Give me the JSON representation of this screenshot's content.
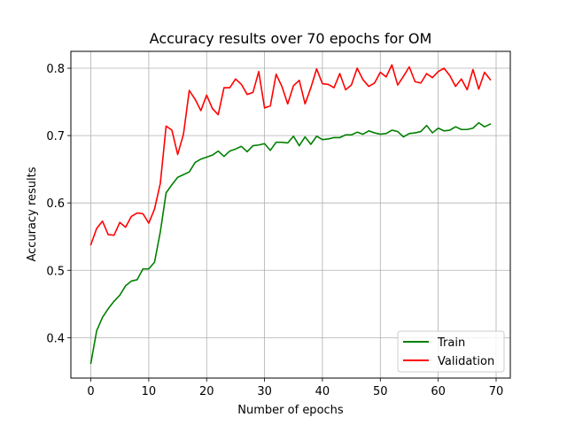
{
  "chart_data": {
    "type": "line",
    "title": "Accuracy results over 70 epochs for OM",
    "xlabel": "Number of epochs",
    "ylabel": "Accuracy results",
    "xlim": [
      -3.45,
      72.45
    ],
    "ylim": [
      0.34,
      0.825
    ],
    "xticks": [
      0,
      10,
      20,
      30,
      40,
      50,
      60,
      70
    ],
    "yticks": [
      0.4,
      0.5,
      0.6,
      0.7,
      0.8
    ],
    "ytick_labels": [
      "0.4",
      "0.5",
      "0.6",
      "0.7",
      "0.8"
    ],
    "grid": true,
    "legend_position": "lower-right",
    "x": [
      0,
      1,
      2,
      3,
      4,
      5,
      6,
      7,
      8,
      9,
      10,
      11,
      12,
      13,
      14,
      15,
      16,
      17,
      18,
      19,
      20,
      21,
      22,
      23,
      24,
      25,
      26,
      27,
      28,
      29,
      30,
      31,
      32,
      33,
      34,
      35,
      36,
      37,
      38,
      39,
      40,
      41,
      42,
      43,
      44,
      45,
      46,
      47,
      48,
      49,
      50,
      51,
      52,
      53,
      54,
      55,
      56,
      57,
      58,
      59,
      60,
      61,
      62,
      63,
      64,
      65,
      66,
      67,
      68,
      69
    ],
    "series": [
      {
        "name": "Train",
        "color": "#008000",
        "values": [
          0.362,
          0.41,
          0.43,
          0.443,
          0.454,
          0.463,
          0.477,
          0.484,
          0.486,
          0.502,
          0.502,
          0.512,
          0.557,
          0.615,
          0.627,
          0.638,
          0.642,
          0.646,
          0.66,
          0.665,
          0.668,
          0.671,
          0.677,
          0.669,
          0.677,
          0.68,
          0.684,
          0.676,
          0.685,
          0.686,
          0.688,
          0.678,
          0.69,
          0.69,
          0.689,
          0.699,
          0.685,
          0.698,
          0.687,
          0.699,
          0.694,
          0.695,
          0.697,
          0.697,
          0.701,
          0.701,
          0.705,
          0.702,
          0.707,
          0.704,
          0.702,
          0.703,
          0.708,
          0.706,
          0.698,
          0.703,
          0.704,
          0.706,
          0.715,
          0.704,
          0.711,
          0.707,
          0.708,
          0.713,
          0.709,
          0.709,
          0.711,
          0.719,
          0.713,
          0.717
        ]
      },
      {
        "name": "Validation",
        "color": "#ff0000",
        "values": [
          0.538,
          0.562,
          0.573,
          0.553,
          0.552,
          0.571,
          0.564,
          0.58,
          0.585,
          0.584,
          0.57,
          0.591,
          0.629,
          0.714,
          0.708,
          0.672,
          0.702,
          0.767,
          0.754,
          0.737,
          0.76,
          0.74,
          0.731,
          0.771,
          0.771,
          0.784,
          0.776,
          0.761,
          0.764,
          0.795,
          0.741,
          0.744,
          0.791,
          0.773,
          0.747,
          0.774,
          0.782,
          0.747,
          0.771,
          0.799,
          0.777,
          0.776,
          0.771,
          0.792,
          0.768,
          0.775,
          0.8,
          0.783,
          0.773,
          0.778,
          0.794,
          0.787,
          0.805,
          0.775,
          0.788,
          0.802,
          0.78,
          0.778,
          0.792,
          0.786,
          0.795,
          0.8,
          0.789,
          0.773,
          0.784,
          0.768,
          0.798,
          0.769,
          0.794,
          0.783
        ]
      }
    ]
  }
}
